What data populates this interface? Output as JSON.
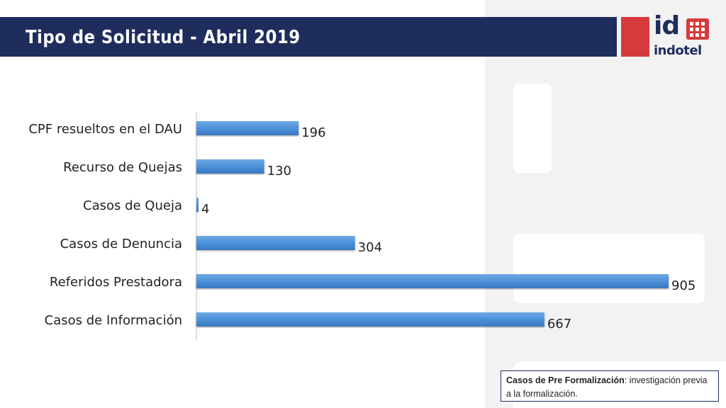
{
  "slide": {
    "title": "Tipo de Solicitud - Abril 2019"
  },
  "logo": {
    "mark": "id",
    "name": "indotel",
    "brand_colors": {
      "navy": "#1f2d5c",
      "red": "#d63a3c"
    }
  },
  "note": {
    "label": "Casos de Pre Formalización",
    "text": ": investigación previa a la formalización."
  },
  "chart_data": {
    "type": "bar",
    "orientation": "horizontal",
    "categories": [
      "CPF resueltos en el DAU",
      "Recurso de Quejas",
      "Casos de Queja",
      "Casos de Denuncia",
      "Referidos Prestadora",
      "Casos de Información"
    ],
    "values": [
      196,
      130,
      4,
      304,
      905,
      667
    ],
    "data_labels": [
      "196",
      "130",
      "4",
      "304",
      "905",
      "667"
    ],
    "bar_color": "#4a8fd6",
    "grid": false,
    "legend": "none",
    "xlim": [
      0,
      905
    ]
  }
}
